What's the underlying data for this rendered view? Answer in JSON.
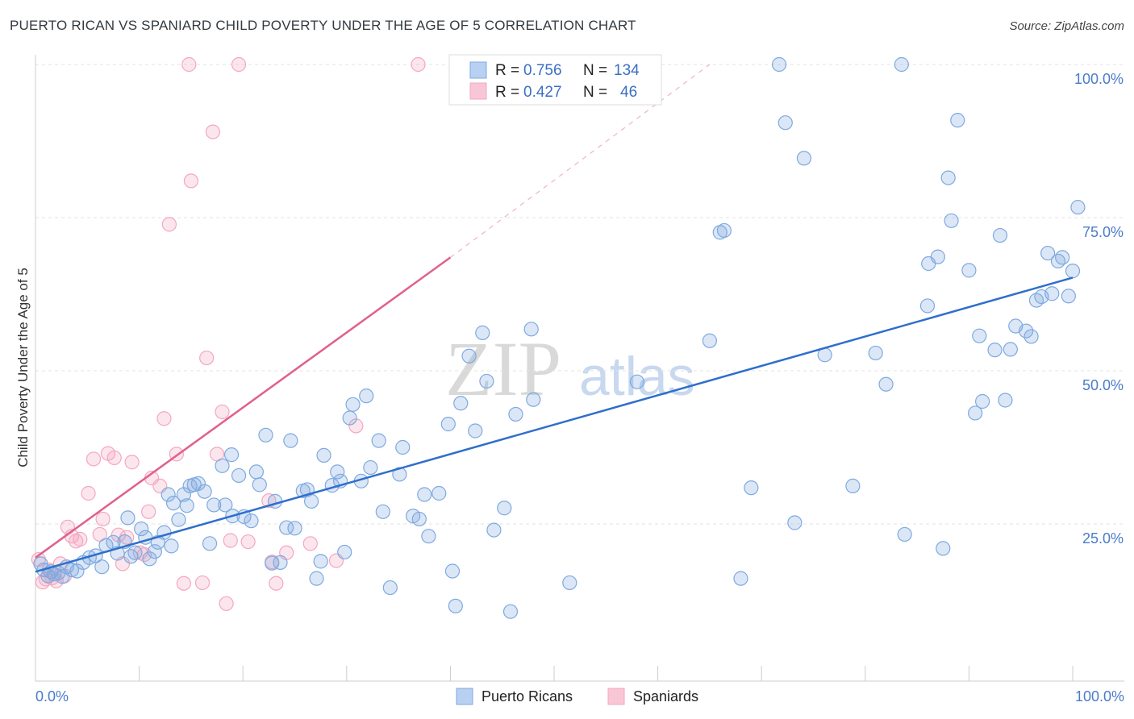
{
  "chart_data": {
    "type": "scatter",
    "title": "PUERTO RICAN VS SPANIARD CHILD POVERTY UNDER THE AGE OF 5 CORRELATION CHART",
    "source": "Source: ZipAtlas.com",
    "xlabel": "",
    "ylabel": "Child Poverty Under the Age of 5",
    "xlim": [
      0,
      100
    ],
    "ylim": [
      0,
      100
    ],
    "x_tick_labels": [
      "0.0%",
      "100.0%"
    ],
    "y_tick_labels": [
      "25.0%",
      "50.0%",
      "75.0%",
      "100.0%"
    ],
    "y_tick_values": [
      25,
      50,
      75,
      100
    ],
    "legend": {
      "rows": [
        {
          "r_label": "R =",
          "r_value": "0.756",
          "n_label": "N =",
          "n_value": "134"
        },
        {
          "r_label": "R =",
          "r_value": "0.427",
          "n_label": "N =",
          "n_value": "46"
        }
      ]
    },
    "watermark": {
      "zip": "ZIP",
      "atlas": "atlas"
    },
    "series": [
      {
        "name": "Puerto Ricans",
        "color": "#7fa9e0",
        "line_color": "#2f6fcc",
        "trend": {
          "x0": 0,
          "y0": 17.2,
          "x1": 100,
          "y1": 65.2
        },
        "points": [
          [
            0.5,
            18.5
          ],
          [
            0.8,
            17.5
          ],
          [
            1.2,
            16.5
          ],
          [
            1.5,
            17.2
          ],
          [
            1.8,
            16.8
          ],
          [
            2.2,
            17.0
          ],
          [
            2.6,
            16.4
          ],
          [
            3.0,
            18.0
          ],
          [
            3.5,
            17.5
          ],
          [
            4.0,
            17.3
          ],
          [
            4.6,
            18.7
          ],
          [
            5.2,
            19.5
          ],
          [
            5.8,
            19.8
          ],
          [
            6.4,
            18.0
          ],
          [
            6.8,
            21.5
          ],
          [
            7.5,
            22.0
          ],
          [
            7.9,
            20.2
          ],
          [
            8.6,
            22.1
          ],
          [
            8.9,
            26.0
          ],
          [
            9.2,
            19.7
          ],
          [
            9.6,
            20.3
          ],
          [
            10.2,
            24.2
          ],
          [
            10.6,
            22.8
          ],
          [
            11.0,
            19.3
          ],
          [
            11.5,
            20.5
          ],
          [
            11.8,
            22.0
          ],
          [
            12.4,
            23.6
          ],
          [
            12.8,
            29.8
          ],
          [
            13.1,
            21.4
          ],
          [
            13.3,
            28.4
          ],
          [
            13.8,
            25.7
          ],
          [
            14.3,
            29.8
          ],
          [
            14.6,
            28.0
          ],
          [
            14.9,
            31.2
          ],
          [
            15.3,
            31.4
          ],
          [
            15.7,
            31.6
          ],
          [
            16.3,
            30.3
          ],
          [
            16.8,
            21.8
          ],
          [
            17.2,
            28.1
          ],
          [
            18.0,
            34.5
          ],
          [
            18.3,
            28.1
          ],
          [
            18.9,
            36.3
          ],
          [
            19.0,
            26.3
          ],
          [
            19.6,
            32.9
          ],
          [
            20.1,
            26.2
          ],
          [
            20.8,
            25.5
          ],
          [
            21.3,
            33.5
          ],
          [
            21.6,
            31.4
          ],
          [
            22.2,
            39.5
          ],
          [
            22.8,
            18.6
          ],
          [
            23.1,
            28.7
          ],
          [
            23.6,
            18.7
          ],
          [
            24.2,
            24.4
          ],
          [
            24.6,
            38.6
          ],
          [
            25.0,
            24.3
          ],
          [
            25.8,
            30.4
          ],
          [
            26.2,
            30.6
          ],
          [
            26.6,
            28.7
          ],
          [
            27.1,
            16.1
          ],
          [
            27.5,
            18.9
          ],
          [
            27.8,
            36.2
          ],
          [
            28.6,
            31.3
          ],
          [
            29.1,
            33.5
          ],
          [
            29.4,
            32.0
          ],
          [
            29.8,
            20.4
          ],
          [
            30.3,
            42.3
          ],
          [
            30.6,
            44.5
          ],
          [
            31.4,
            32.0
          ],
          [
            31.9,
            45.9
          ],
          [
            32.3,
            34.2
          ],
          [
            33.1,
            38.6
          ],
          [
            33.5,
            27.0
          ],
          [
            34.2,
            14.6
          ],
          [
            35.1,
            33.1
          ],
          [
            35.4,
            37.5
          ],
          [
            36.4,
            26.3
          ],
          [
            37.0,
            25.8
          ],
          [
            37.5,
            29.8
          ],
          [
            37.9,
            23.0
          ],
          [
            38.9,
            30.0
          ],
          [
            39.8,
            41.3
          ],
          [
            40.2,
            17.3
          ],
          [
            40.5,
            11.6
          ],
          [
            41.0,
            44.7
          ],
          [
            41.8,
            52.4
          ],
          [
            42.4,
            40.2
          ],
          [
            43.1,
            56.2
          ],
          [
            43.5,
            48.3
          ],
          [
            44.2,
            24.0
          ],
          [
            45.2,
            27.6
          ],
          [
            45.8,
            10.7
          ],
          [
            46.3,
            42.9
          ],
          [
            47.8,
            56.8
          ],
          [
            48.0,
            45.3
          ],
          [
            51.5,
            15.4
          ],
          [
            58.0,
            48.2
          ],
          [
            65.0,
            54.9
          ],
          [
            66.0,
            72.6
          ],
          [
            66.4,
            72.9
          ],
          [
            68.0,
            16.1
          ],
          [
            69.0,
            30.9
          ],
          [
            71.7,
            100.0
          ],
          [
            72.3,
            90.5
          ],
          [
            73.2,
            25.2
          ],
          [
            74.1,
            84.7
          ],
          [
            76.1,
            52.6
          ],
          [
            78.8,
            31.2
          ],
          [
            81.0,
            52.9
          ],
          [
            82.0,
            47.8
          ],
          [
            83.5,
            100.0
          ],
          [
            83.8,
            23.3
          ],
          [
            86.0,
            60.6
          ],
          [
            86.1,
            67.5
          ],
          [
            87.0,
            68.6
          ],
          [
            87.5,
            21.0
          ],
          [
            88.0,
            81.5
          ],
          [
            88.3,
            74.5
          ],
          [
            88.9,
            90.9
          ],
          [
            90.0,
            66.4
          ],
          [
            90.6,
            43.1
          ],
          [
            91.0,
            55.7
          ],
          [
            91.3,
            45.0
          ],
          [
            92.5,
            53.4
          ],
          [
            93.0,
            72.1
          ],
          [
            93.5,
            45.2
          ],
          [
            94.0,
            53.5
          ],
          [
            94.5,
            57.3
          ],
          [
            95.5,
            56.5
          ],
          [
            96.0,
            55.6
          ],
          [
            96.5,
            61.5
          ],
          [
            97.0,
            62.1
          ],
          [
            97.6,
            69.2
          ],
          [
            98.0,
            62.6
          ],
          [
            98.6,
            67.9
          ],
          [
            99.0,
            68.5
          ],
          [
            99.6,
            62.2
          ],
          [
            100.0,
            66.3
          ],
          [
            100.5,
            76.7
          ]
        ]
      },
      {
        "name": "Spaniards",
        "color": "#f4a7c0",
        "line_color": "#e0608e",
        "trend": {
          "x0": 0,
          "y0": 19.5,
          "x1": 40,
          "y1": 68.5
        },
        "trend_dash_end": {
          "x1": 65,
          "y1": 100
        },
        "points": [
          [
            0.3,
            19.2
          ],
          [
            0.7,
            15.5
          ],
          [
            1.0,
            16.0
          ],
          [
            1.3,
            17.5
          ],
          [
            1.6,
            16.2
          ],
          [
            2.0,
            15.7
          ],
          [
            2.4,
            18.5
          ],
          [
            2.8,
            16.5
          ],
          [
            3.1,
            24.5
          ],
          [
            3.5,
            23.0
          ],
          [
            3.9,
            22.2
          ],
          [
            4.3,
            22.5
          ],
          [
            5.1,
            30.0
          ],
          [
            5.6,
            35.6
          ],
          [
            6.2,
            23.3
          ],
          [
            6.5,
            25.8
          ],
          [
            7.0,
            36.5
          ],
          [
            7.6,
            35.8
          ],
          [
            8.0,
            23.2
          ],
          [
            8.4,
            18.5
          ],
          [
            8.8,
            22.8
          ],
          [
            9.3,
            35.1
          ],
          [
            10.1,
            20.3
          ],
          [
            10.5,
            20.0
          ],
          [
            10.9,
            27.0
          ],
          [
            11.2,
            32.5
          ],
          [
            12.0,
            31.2
          ],
          [
            12.4,
            42.2
          ],
          [
            13.6,
            36.4
          ],
          [
            14.3,
            15.3
          ],
          [
            14.8,
            100.0
          ],
          [
            16.1,
            15.4
          ],
          [
            16.5,
            52.1
          ],
          [
            17.1,
            89.0
          ],
          [
            17.5,
            36.4
          ],
          [
            18.0,
            43.3
          ],
          [
            18.4,
            12.0
          ],
          [
            18.8,
            22.3
          ],
          [
            19.6,
            100.0
          ],
          [
            20.5,
            22.1
          ],
          [
            22.5,
            28.8
          ],
          [
            23.2,
            15.3
          ],
          [
            24.2,
            20.3
          ],
          [
            26.5,
            21.8
          ],
          [
            29.0,
            19.0
          ],
          [
            30.9,
            41.0
          ],
          [
            36.9,
            100.0
          ],
          [
            12.9,
            73.9
          ],
          [
            15.0,
            81.0
          ],
          [
            22.8,
            18.8
          ]
        ]
      }
    ]
  }
}
